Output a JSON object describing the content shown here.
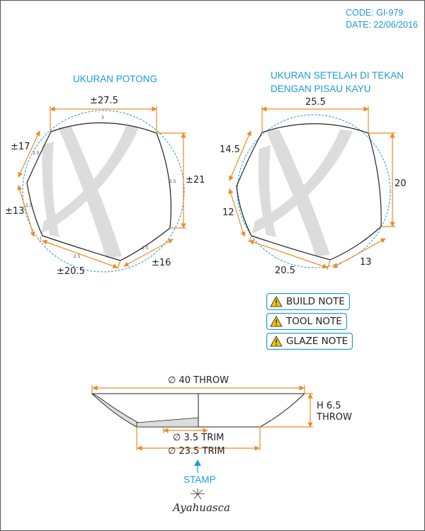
{
  "header": {
    "code": "CODE: GI-979",
    "date": "DATE: 22/06/2016"
  },
  "left_view": {
    "title": "UKURAN POTONG",
    "dims": {
      "top": "±27.5",
      "right": "±21",
      "bottom_right": "±16",
      "bottom": "±20.5",
      "left_lower": "±13",
      "left_upper": "±17"
    },
    "offsets": [
      "3",
      "2.5",
      "2.5",
      "2.5",
      "2.5",
      "2.5"
    ]
  },
  "right_view": {
    "title_line1": "UKURAN SETELAH DI TEKAN",
    "title_line2": "DENGAN PISAU KAYU",
    "dims": {
      "top": "25.5",
      "right": "20",
      "bottom_right": "13",
      "bottom": "20.5",
      "left_lower": "12",
      "left_upper": "14.5"
    }
  },
  "notes": {
    "build": "BUILD NOTE",
    "tool": "TOOL NOTE",
    "glaze": "GLAZE NOTE"
  },
  "section": {
    "diameter_throw": "∅ 40 THROW",
    "height_line1": "H 6.5",
    "height_line2": "THROW",
    "trim_small": "∅ 3.5 TRIM",
    "trim_large": "∅ 23.5 TRIM"
  },
  "stamp": {
    "label": "STAMP",
    "logo_text": "Ayahuasca"
  },
  "colors": {
    "accent_blue": "#1e9ad6",
    "dimension_orange": "#f08a24",
    "warning_yellow": "#f5c400"
  }
}
